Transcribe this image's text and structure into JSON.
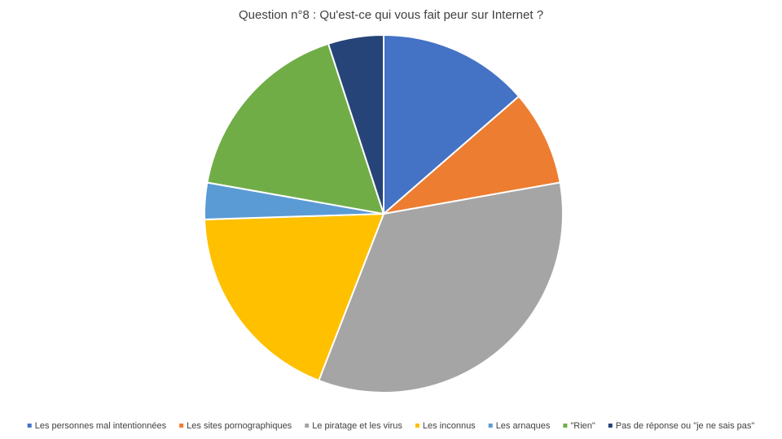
{
  "chart_data": {
    "type": "pie",
    "title": "Question n°8 : Qu'est-ce qui vous fait peur sur Internet ?",
    "categories": [
      "Les personnes mal intentionnées",
      "Les sites pornographiques",
      "Le piratage et les virus",
      "Les inconnus",
      "Les arnaques",
      "\"Rien\"",
      "Pas de réponse ou \"je ne sais pas\""
    ],
    "values": [
      13.6,
      8.6,
      33.7,
      18.6,
      3.3,
      17.2,
      5.0
    ],
    "colors": [
      "#4472c4",
      "#ed7d31",
      "#a5a5a5",
      "#ffc000",
      "#5b9bd5",
      "#70ad47",
      "#264478"
    ],
    "legend": "bottom"
  }
}
